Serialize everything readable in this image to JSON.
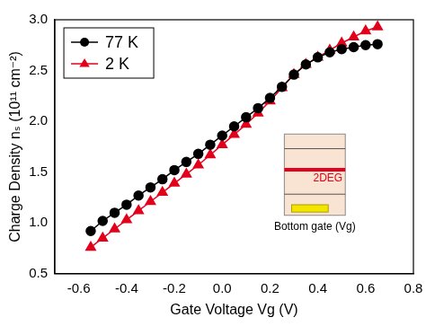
{
  "chart_data": {
    "type": "line",
    "x_label": "Gate Voltage Vg (V)",
    "y_label": "Charge Density nₛ (10¹¹ cm⁻²)",
    "x": [
      -0.55,
      -0.5,
      -0.45,
      -0.4,
      -0.35,
      -0.3,
      -0.25,
      -0.2,
      -0.15,
      -0.1,
      -0.05,
      0,
      0.05,
      0.1,
      0.15,
      0.2,
      0.25,
      0.3,
      0.35,
      0.4,
      0.45,
      0.5,
      0.55,
      0.6,
      0.65
    ],
    "series": [
      {
        "name": "77 K",
        "color": "#000000",
        "marker": "circle",
        "line_style": "solid",
        "values": [
          0.92,
          1.02,
          1.1,
          1.18,
          1.27,
          1.35,
          1.43,
          1.52,
          1.6,
          1.68,
          1.77,
          1.86,
          1.95,
          2.04,
          2.13,
          2.23,
          2.34,
          2.46,
          2.56,
          2.63,
          2.68,
          2.71,
          2.73,
          2.75,
          2.76
        ]
      },
      {
        "name": "2 K",
        "color": "#e3001b",
        "marker": "triangle",
        "line_style": "solid",
        "values": [
          0.76,
          0.85,
          0.94,
          1.03,
          1.12,
          1.21,
          1.3,
          1.39,
          1.48,
          1.57,
          1.67,
          1.77,
          1.87,
          1.97,
          2.08,
          2.2,
          2.33,
          2.46,
          2.56,
          2.63,
          2.7,
          2.77,
          2.83,
          2.89,
          2.93
        ]
      }
    ],
    "xlim": [
      -0.7,
      0.8
    ],
    "xticks": [
      -0.6,
      -0.4,
      -0.2,
      {
        "value": 0,
        "label": "0.0"
      },
      0.2,
      0.4,
      0.6,
      0.8
    ],
    "ylim": [
      0.5,
      3.0
    ],
    "yticks": [
      0.5,
      {
        "value": 1,
        "label": "1.0"
      },
      1.5,
      {
        "value": 2,
        "label": "2.0"
      },
      2.5,
      {
        "value": 3,
        "label": "3.0"
      }
    ],
    "grid": false,
    "legend": "upper left",
    "annotations": [
      "2DEG",
      "Bottom gate (Vg)"
    ]
  }
}
